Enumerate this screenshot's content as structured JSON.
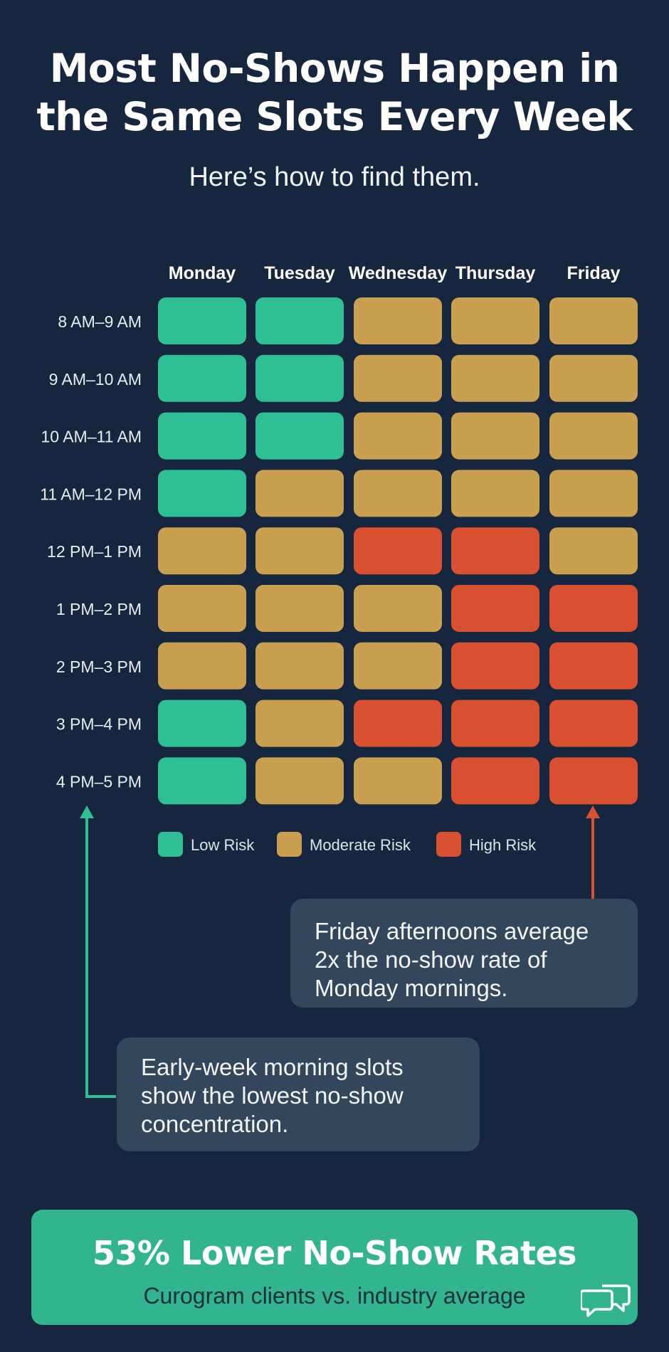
{
  "header": {
    "title_line1": "Most No-Shows Happen in",
    "title_line2": "the Same Slots Every Week",
    "subtitle": "Here’s how to find them."
  },
  "chart_data": {
    "type": "heatmap",
    "columns": [
      "Monday",
      "Tuesday",
      "Wednesday",
      "Thursday",
      "Friday"
    ],
    "rows": [
      "8 AM–9 AM",
      "9 AM–10 AM",
      "10 AM–11 AM",
      "11 AM–12 PM",
      "12 PM–1 PM",
      "1 PM–2 PM",
      "2 PM–3 PM",
      "3 PM–4 PM",
      "4 PM–5 PM"
    ],
    "values": [
      [
        "low",
        "low",
        "moderate",
        "moderate",
        "moderate"
      ],
      [
        "low",
        "low",
        "moderate",
        "moderate",
        "moderate"
      ],
      [
        "low",
        "low",
        "moderate",
        "moderate",
        "moderate"
      ],
      [
        "low",
        "moderate",
        "moderate",
        "moderate",
        "moderate"
      ],
      [
        "moderate",
        "moderate",
        "high",
        "high",
        "moderate"
      ],
      [
        "moderate",
        "moderate",
        "moderate",
        "high",
        "high"
      ],
      [
        "moderate",
        "moderate",
        "moderate",
        "high",
        "high"
      ],
      [
        "low",
        "moderate",
        "high",
        "high",
        "high"
      ],
      [
        "low",
        "moderate",
        "moderate",
        "high",
        "high"
      ]
    ],
    "legend": [
      {
        "key": "low",
        "label": "Low Risk",
        "color": "#2fbf94"
      },
      {
        "key": "moderate",
        "label": "Moderate Risk",
        "color": "#c8a04f"
      },
      {
        "key": "high",
        "label": "High Risk",
        "color": "#d8502f"
      }
    ],
    "legend_position": "bottom"
  },
  "callouts": {
    "friday": "Friday afternoons average 2x the no-show rate of Monday mornings.",
    "early_week": "Early-week morning slots show the lowest no-show concentration."
  },
  "banner": {
    "title": "53% Lower No-Show Rates",
    "subtitle": "Curogram clients vs. industry average",
    "icon": "chat-bubbles-icon",
    "color": "#32b48e"
  },
  "colors": {
    "background": "#16263e",
    "callout_bg": "#33465c",
    "low_arrow": "#2fbf94",
    "high_arrow": "#d8502f"
  }
}
